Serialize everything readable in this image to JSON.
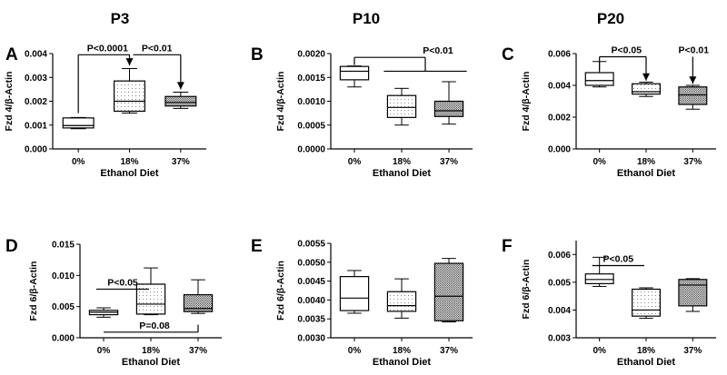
{
  "figure": {
    "column_headers": [
      "P3",
      "P10",
      "P20"
    ]
  },
  "patterns": {
    "0%": "none",
    "18%": "sparse-dots",
    "37%": "dense-dots"
  },
  "chart_data": [
    {
      "type": "boxplot",
      "panel": "A",
      "ylabel": "Fzd 4/β-Actin",
      "xlabel": "Ethanol Diet",
      "categories": [
        "0%",
        "18%",
        "37%"
      ],
      "ylim": [
        0,
        0.004
      ],
      "yticks": [
        "0.000",
        "0.001",
        "0.002",
        "0.003",
        "0.004"
      ],
      "yticks_values": [
        0,
        0.001,
        0.002,
        0.003,
        0.004
      ],
      "boxes": [
        {
          "min": 0.00085,
          "q1": 0.00088,
          "median": 0.00098,
          "q3": 0.0013,
          "max": 0.00132
        },
        {
          "min": 0.0015,
          "q1": 0.00158,
          "median": 0.002,
          "q3": 0.00285,
          "max": 0.00337
        },
        {
          "min": 0.0017,
          "q1": 0.0018,
          "median": 0.00195,
          "q3": 0.0022,
          "max": 0.00238
        }
      ],
      "annotations": [
        {
          "text": "P<0.0001",
          "kind": "arrow",
          "from": 0,
          "to": 1,
          "bar_y": 0.00395,
          "start_y": 0.0015,
          "end_y": 0.0035
        },
        {
          "text": "P<0.01",
          "kind": "arrow-single",
          "to": 2,
          "bar_y": 0.00395,
          "end_y": 0.0025,
          "from_x": 1.5
        }
      ]
    },
    {
      "type": "boxplot",
      "panel": "B",
      "ylabel": "Fzd 4/β-Actin",
      "xlabel": "Ethanol Diet",
      "categories": [
        "0%",
        "18%",
        "37%"
      ],
      "ylim": [
        0,
        0.002
      ],
      "yticks": [
        "0.0000",
        "0.0005",
        "0.0010",
        "0.0015",
        "0.0020"
      ],
      "yticks_values": [
        0,
        0.0005,
        0.001,
        0.0015,
        0.002
      ],
      "boxes": [
        {
          "min": 0.0013,
          "q1": 0.00145,
          "median": 0.00163,
          "q3": 0.00173,
          "max": 0.00174
        },
        {
          "min": 0.0005,
          "q1": 0.00066,
          "median": 0.00087,
          "q3": 0.00112,
          "max": 0.00127
        },
        {
          "min": 0.00052,
          "q1": 0.00068,
          "median": 0.0008,
          "q3": 0.001,
          "max": 0.00141
        }
      ],
      "annotations": [
        {
          "text": "P<0.01",
          "kind": "bracket-group",
          "bar_y": 0.00192,
          "left_x": 0,
          "left_end_y": 0.00176,
          "group_from": 1,
          "group_to": 2,
          "group_y": 0.00163
        }
      ]
    },
    {
      "type": "boxplot",
      "panel": "C",
      "ylabel": "Fzd 4/β-Actin",
      "xlabel": "Ethanol Diet",
      "categories": [
        "0%",
        "18%",
        "37%"
      ],
      "ylim": [
        0,
        0.006
      ],
      "yticks": [
        "0.000",
        "0.002",
        "0.004",
        "0.006"
      ],
      "yticks_values": [
        0,
        0.002,
        0.004,
        0.006
      ],
      "boxes": [
        {
          "min": 0.0039,
          "q1": 0.004,
          "median": 0.0043,
          "q3": 0.0048,
          "max": 0.0055
        },
        {
          "min": 0.0033,
          "q1": 0.00345,
          "median": 0.0036,
          "q3": 0.0041,
          "max": 0.0042
        },
        {
          "min": 0.0025,
          "q1": 0.0028,
          "median": 0.0034,
          "q3": 0.0039,
          "max": 0.004
        }
      ],
      "annotations": [
        {
          "text": "P<0.05",
          "kind": "arrow",
          "from": 0,
          "to": 1,
          "bar_y": 0.0058,
          "start_y": 0.0049,
          "end_y": 0.0043
        },
        {
          "text": "P<0.01",
          "kind": "arrow-single-extend",
          "to": 2,
          "bar_y": 0.0058,
          "end_y": 0.0041
        }
      ]
    },
    {
      "type": "boxplot",
      "panel": "D",
      "ylabel": "Fzd 6/β-Actin",
      "xlabel": "Ethanol Diet",
      "categories": [
        "0%",
        "18%",
        "37%"
      ],
      "ylim": [
        0,
        0.015
      ],
      "yticks": [
        "0.000",
        "0.005",
        "0.010",
        "0.015"
      ],
      "yticks_values": [
        0,
        0.005,
        0.01,
        0.015
      ],
      "boxes": [
        {
          "min": 0.0033,
          "q1": 0.0037,
          "median": 0.0041,
          "q3": 0.0044,
          "max": 0.0048
        },
        {
          "min": 0.0037,
          "q1": 0.0038,
          "median": 0.0054,
          "q3": 0.0086,
          "max": 0.0112
        },
        {
          "min": 0.0039,
          "q1": 0.0042,
          "median": 0.0047,
          "q3": 0.0069,
          "max": 0.0093
        }
      ],
      "annotations": [
        {
          "text": "P<0.05",
          "kind": "line",
          "from": 0,
          "to": 1,
          "bar_y": 0.0078
        },
        {
          "text": "P=0.08",
          "kind": "bracket-below",
          "from": 0,
          "to": 2,
          "bar_y": 0.0009,
          "tick_top": 0.0021
        }
      ]
    },
    {
      "type": "boxplot",
      "panel": "E",
      "ylabel": "Fzd 6/β-Actin",
      "xlabel": "Ethanol Diet",
      "categories": [
        "0%",
        "18%",
        "37%"
      ],
      "ylim": [
        0.003,
        0.0055
      ],
      "yticks": [
        "0.0030",
        "0.0035",
        "0.0040",
        "0.0045",
        "0.0050",
        "0.0055"
      ],
      "yticks_values": [
        0.003,
        0.0035,
        0.004,
        0.0045,
        0.005,
        0.0055
      ],
      "boxes": [
        {
          "min": 0.00365,
          "q1": 0.00372,
          "median": 0.00405,
          "q3": 0.00462,
          "max": 0.00478
        },
        {
          "min": 0.00352,
          "q1": 0.0037,
          "median": 0.00385,
          "q3": 0.00422,
          "max": 0.00456
        },
        {
          "min": 0.00342,
          "q1": 0.00345,
          "median": 0.0041,
          "q3": 0.00497,
          "max": 0.0051
        }
      ],
      "annotations": []
    },
    {
      "type": "boxplot",
      "panel": "F",
      "ylabel": "Fzd 6/β-Actin",
      "xlabel": "Ethanol Diet",
      "categories": [
        "0%",
        "18%",
        "37%"
      ],
      "ylim": [
        0.003,
        0.0065
      ],
      "yticks": [
        "0.003",
        "0.004",
        "0.005",
        "0.006"
      ],
      "yticks_values": [
        0.003,
        0.004,
        0.005,
        0.006
      ],
      "boxes": [
        {
          "min": 0.00485,
          "q1": 0.00495,
          "median": 0.0051,
          "q3": 0.0053,
          "max": 0.0059
        },
        {
          "min": 0.0037,
          "q1": 0.00378,
          "median": 0.004,
          "q3": 0.00475,
          "max": 0.0048
        },
        {
          "min": 0.00395,
          "q1": 0.00415,
          "median": 0.0049,
          "q3": 0.0051,
          "max": 0.00513
        }
      ],
      "annotations": [
        {
          "text": "P<0.05",
          "kind": "line",
          "from": 0,
          "to": 1,
          "bar_y": 0.0056
        }
      ]
    }
  ]
}
